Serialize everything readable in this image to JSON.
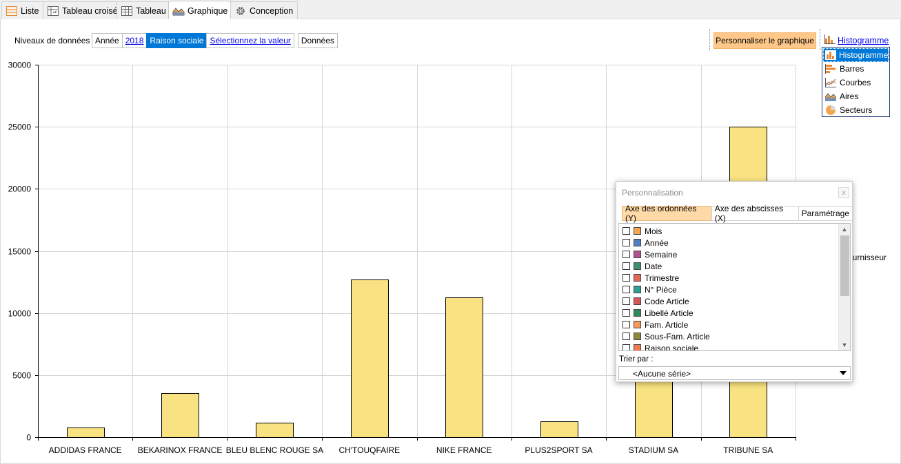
{
  "tabs": [
    {
      "label": "Liste",
      "icon": "list-icon"
    },
    {
      "label": "Tableau croisé",
      "icon": "pivot-table-icon"
    },
    {
      "label": "Tableau",
      "icon": "table-icon"
    },
    {
      "label": "Graphique",
      "icon": "area-chart-icon",
      "active": true
    },
    {
      "label": "Conception",
      "icon": "gear-icon"
    }
  ],
  "levels": {
    "label": "Niveaux de données",
    "items": [
      "Année",
      "2018",
      "Raison sociale",
      "Sélectionnez la valeur",
      "Données"
    ]
  },
  "customize_button": "Personnaliser le graphique",
  "chart_type": {
    "current": "Histogramme",
    "options": [
      {
        "label": "Histogramme",
        "icon": "histogram-icon"
      },
      {
        "label": "Barres",
        "icon": "bars-icon"
      },
      {
        "label": "Courbes",
        "icon": "line-chart-icon"
      },
      {
        "label": "Aires",
        "icon": "area-chart-icon"
      },
      {
        "label": "Secteurs",
        "icon": "pie-chart-icon"
      }
    ]
  },
  "legend_partial": "ournisseur",
  "chart_data": {
    "type": "bar",
    "categories": [
      "ADDIDAS FRANCE",
      "BEKARINOX FRANCE",
      "BLEU BLENC ROUGE SA",
      "CH'TOUQFAIRE",
      "NIKE FRANCE",
      "PLUS2SPORT SA",
      "STADIUM SA",
      "TRIBUNE SA"
    ],
    "values": [
      750,
      3550,
      1150,
      12700,
      11250,
      1250,
      8100,
      25000
    ],
    "yticks": [
      0,
      5000,
      10000,
      15000,
      20000,
      25000,
      30000
    ],
    "ylim": [
      0,
      30000
    ],
    "grid": true,
    "bar_color": "#f9e281"
  },
  "dialog": {
    "title": "Personnalisation",
    "close": "x",
    "tabs": [
      "Axe des ordonnées (Y)",
      "Axe des abscisses (X)",
      "Paramétrage"
    ],
    "fields": [
      {
        "label": "Mois",
        "color": "#f6a54b"
      },
      {
        "label": "Année",
        "color": "#4f7fc0"
      },
      {
        "label": "Semaine",
        "color": "#b3508f"
      },
      {
        "label": "Date",
        "color": "#3f8f6e"
      },
      {
        "label": "Trimestre",
        "color": "#e06a5a"
      },
      {
        "label": "N° Pièce",
        "color": "#2f9f8f"
      },
      {
        "label": "Code Article",
        "color": "#d45a5a"
      },
      {
        "label": "Libellé Article",
        "color": "#2e8a5f"
      },
      {
        "label": "Fam. Article",
        "color": "#f39a5a"
      },
      {
        "label": "Sous-Fam. Article",
        "color": "#8a8a3a"
      },
      {
        "label": "Raison sociale",
        "color": "#f07a4a"
      }
    ],
    "sort_label": "Trier par :",
    "sort_value": "<Aucune série>"
  }
}
